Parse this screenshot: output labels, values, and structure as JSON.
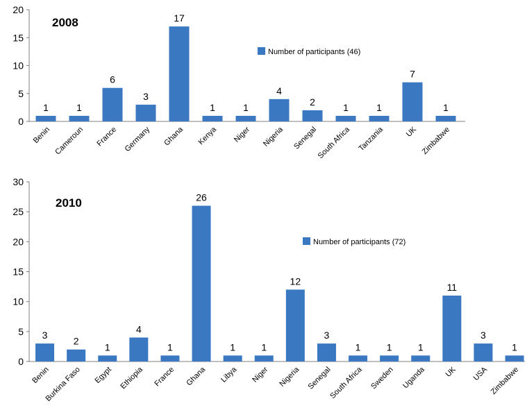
{
  "chart_data": [
    {
      "type": "bar",
      "title": "2008",
      "categories": [
        "Benin",
        "Cameroun",
        "France",
        "Germany",
        "Ghana",
        "Kenya",
        "Niger",
        "Nigeria",
        "Senegal",
        "South Africa",
        "Tanzania",
        "UK",
        "Zimbabwe"
      ],
      "series": [
        {
          "name": "Number of participants (46)",
          "values": [
            1,
            1,
            6,
            3,
            17,
            1,
            1,
            4,
            2,
            1,
            1,
            7,
            1
          ]
        }
      ],
      "ylim": [
        0,
        20
      ],
      "yticks": [
        "0",
        "5",
        "10",
        "15",
        "20"
      ],
      "xlabel": "",
      "ylabel": "",
      "grid": false,
      "legend_position": "top-right",
      "bar_color": "#3a78c2"
    },
    {
      "type": "bar",
      "title": "2010",
      "categories": [
        "Benin",
        "Burkina Faso",
        "Egypt",
        "Ethiopia",
        "France",
        "Ghana",
        "Libya",
        "Niger",
        "Nigeria",
        "Senegal",
        "South Africa",
        "Sweden",
        "Uganda",
        "UK",
        "USA",
        "Zimbabwe"
      ],
      "series": [
        {
          "name": "Number of participants (72)",
          "values": [
            3,
            2,
            1,
            4,
            1,
            26,
            1,
            1,
            12,
            3,
            1,
            1,
            1,
            11,
            3,
            1
          ]
        }
      ],
      "ylim": [
        0,
        30
      ],
      "yticks": [
        "0",
        "5",
        "10",
        "15",
        "20",
        "25",
        "30"
      ],
      "xlabel": "",
      "ylabel": "",
      "grid": false,
      "legend_position": "top-right",
      "bar_color": "#3a78c2"
    }
  ]
}
